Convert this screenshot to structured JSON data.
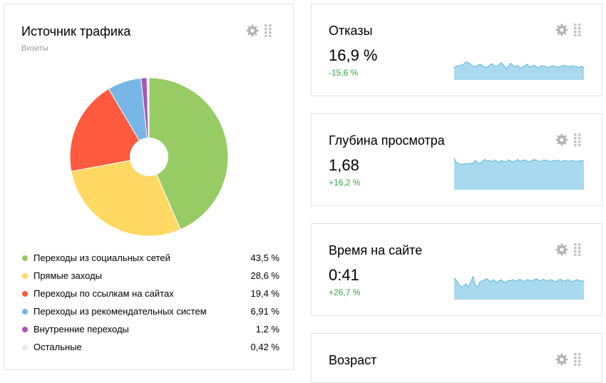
{
  "traffic": {
    "title": "Источник трафика",
    "subtitle": "Визиты",
    "items": [
      {
        "label": "Переходы из социальных сетей",
        "value": "43,5 %",
        "share": 43.5,
        "color": "#97cc64"
      },
      {
        "label": "Прямые заходы",
        "value": "28,6 %",
        "share": 28.6,
        "color": "#ffd963"
      },
      {
        "label": "Переходы по ссылкам на сайтах",
        "value": "19,4 %",
        "share": 19.4,
        "color": "#ff5a3e"
      },
      {
        "label": "Переходы из рекомендательных систем",
        "value": "6,91 %",
        "share": 6.91,
        "color": "#77b6e7"
      },
      {
        "label": "Внутренние переходы",
        "value": "1,2 %",
        "share": 1.2,
        "color": "#a955b8"
      },
      {
        "label": "Остальные",
        "value": "0,42 %",
        "share": 0.42,
        "color": "#ececec"
      }
    ]
  },
  "metrics": [
    {
      "title": "Отказы",
      "value": "16,9 %",
      "delta": "-15,6 %",
      "spark": [
        24,
        26,
        27,
        28,
        30,
        34,
        33,
        30,
        26,
        25,
        28,
        30,
        27,
        25,
        24,
        28,
        31,
        27,
        26,
        29,
        33,
        28,
        22,
        26,
        32,
        27,
        25,
        28,
        22,
        25,
        27,
        30,
        24,
        26,
        28,
        25,
        23,
        27,
        26,
        25,
        24,
        26,
        27,
        25,
        24,
        26,
        27,
        28,
        26,
        25,
        27,
        26,
        25,
        24,
        26,
        24
      ]
    },
    {
      "title": "Глубина просмотра",
      "value": "1,68",
      "delta": "+16,2 %",
      "spark": [
        60,
        52,
        50,
        49,
        49,
        50,
        49,
        51,
        50,
        56,
        52,
        50,
        54,
        58,
        55,
        56,
        53,
        57,
        55,
        52,
        56,
        54,
        53,
        57,
        55,
        53,
        55,
        58,
        54,
        56,
        57,
        55,
        53,
        56,
        58,
        56,
        54,
        55,
        57,
        56,
        55,
        54,
        56,
        55,
        57,
        54,
        55,
        56,
        55,
        54,
        56,
        55,
        54,
        55,
        56,
        55
      ]
    },
    {
      "title": "Время на сайте",
      "value": "0:41",
      "delta": "+26,7 %",
      "spark": [
        42,
        36,
        30,
        24,
        26,
        30,
        24,
        34,
        44,
        27,
        24,
        34,
        36,
        38,
        40,
        34,
        36,
        38,
        32,
        36,
        38,
        34,
        33,
        37,
        36,
        38,
        35,
        37,
        39,
        34,
        36,
        38,
        37,
        35,
        38,
        40,
        36,
        37,
        39,
        35,
        37,
        38,
        36,
        34,
        37,
        39,
        36,
        35,
        38,
        37,
        34,
        36,
        38,
        37,
        35,
        36
      ]
    },
    {
      "title": "Возраст"
    }
  ],
  "icons": {
    "settings": "gear-icon",
    "drag": "drag-handle-icon"
  },
  "colors": {
    "delta_positive": "#2eaa3c",
    "sparkline_fill": "#a8d9ee",
    "sparkline_line": "#5ab7dc"
  }
}
